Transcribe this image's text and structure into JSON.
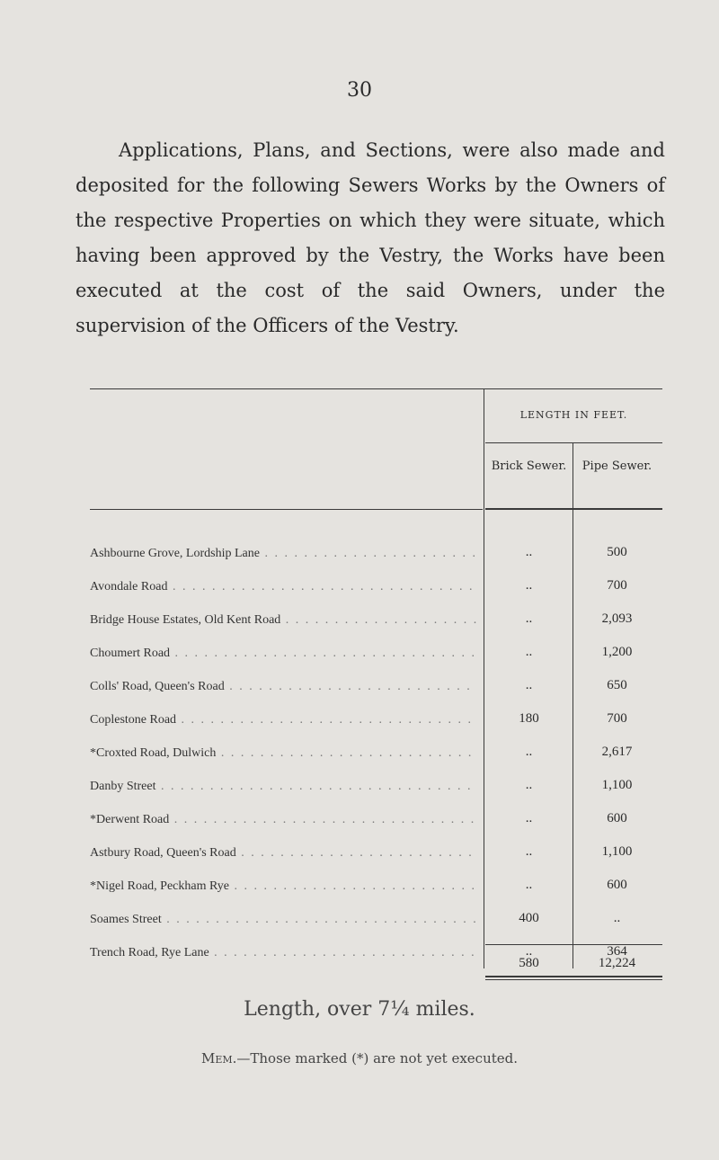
{
  "page_number": "30",
  "paragraph": "Applications, Plans, and Sections, were also made and deposited for the following Sewers Works by the Owners of the respective Properties on which they were situate, which having been approved by the Vestry, the Works have been executed at the cost of the said Owners, under the supervision of the Officers of the Vestry.",
  "table": {
    "group_header": "LENGTH IN FEET.",
    "columns": [
      "Brick Sewer.",
      "Pipe Sewer."
    ],
    "rows": [
      {
        "name": "Ashbourne Grove, Lordship Lane",
        "brick": "..",
        "pipe": "500"
      },
      {
        "name": "Avondale Road",
        "brick": "..",
        "pipe": "700"
      },
      {
        "name": "Bridge House Estates, Old Kent Road",
        "brick": "..",
        "pipe": "2,093"
      },
      {
        "name": "Choumert Road",
        "brick": "..",
        "pipe": "1,200"
      },
      {
        "name": "Colls' Road, Queen's Road",
        "brick": "..",
        "pipe": "650"
      },
      {
        "name": "Coplestone Road",
        "brick": "180",
        "pipe": "700"
      },
      {
        "name": "*Croxted Road, Dulwich",
        "brick": "..",
        "pipe": "2,617"
      },
      {
        "name": "Danby Street",
        "brick": "..",
        "pipe": "1,100"
      },
      {
        "name": "*Derwent Road",
        "brick": "..",
        "pipe": "600"
      },
      {
        "name": "Astbury Road, Queen's Road",
        "brick": "..",
        "pipe": "1,100"
      },
      {
        "name": "*Nigel Road, Peckham Rye",
        "brick": "..",
        "pipe": "600"
      },
      {
        "name": "Soames Street",
        "brick": "400",
        "pipe": ".."
      },
      {
        "name": "Trench Road, Rye Lane",
        "brick": "..",
        "pipe": "364"
      }
    ],
    "totals": {
      "brick": "580",
      "pipe": "12,224"
    }
  },
  "length_note": "Length, over 7¼ miles.",
  "memo": {
    "head": "Mem.",
    "text": "—Those marked (*) are not yet executed."
  }
}
